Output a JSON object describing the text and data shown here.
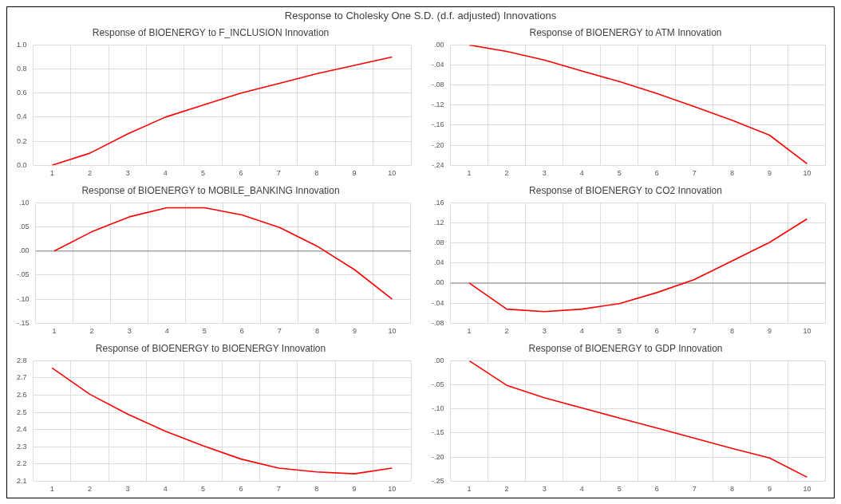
{
  "chart_data": [
    {
      "type": "line",
      "title": "Response of BIOENERGY to F_INCLUSION Innovation",
      "annotations": [
        "Response to Cholesky One S.D. (d.f. adjusted) Innovations"
      ],
      "categories": [
        "1",
        "2",
        "3",
        "4",
        "5",
        "6",
        "7",
        "8",
        "9",
        "10"
      ],
      "series": [
        {
          "color": "#ff0000",
          "values": [
            0,
            0.1,
            0.26,
            0.4,
            0.5,
            0.6,
            0.68,
            0.76,
            0.83,
            0.9
          ]
        }
      ],
      "ylim": [
        0,
        1.0
      ],
      "yticks": [
        {
          "value": 0,
          "label": "0.0"
        },
        0.2,
        0.4,
        0.6,
        0.8,
        {
          "value": 1,
          "label": "1.0"
        }
      ],
      "grid": true,
      "marker": "none"
    },
    {
      "type": "line",
      "title": "Response of BIOENERGY to ATM Innovation",
      "categories": [
        "1",
        "2",
        "3",
        "4",
        "5",
        "6",
        "7",
        "8",
        "9",
        "10"
      ],
      "series": [
        {
          "color": "#ff0000",
          "values": [
            0,
            -0.013,
            -0.03,
            -0.052,
            -0.073,
            -0.097,
            -0.123,
            -0.15,
            -0.18,
            -0.237
          ]
        }
      ],
      "ylim": [
        -0.24,
        0
      ],
      "yticks": [
        {
          "value": 0,
          "label": ".00"
        },
        {
          "value": -0.04,
          "label": "-.04"
        },
        {
          "value": -0.08,
          "label": "-.08"
        },
        {
          "value": -0.12,
          "label": "-.12"
        },
        {
          "value": -0.16,
          "label": "-.16"
        },
        {
          "value": -0.2,
          "label": "-.20"
        },
        {
          "value": -0.24,
          "label": "-.24"
        }
      ],
      "grid": true,
      "marker": "none"
    },
    {
      "type": "line",
      "title": "Response of BIOENERGY to MOBILE_BANKING Innovation",
      "categories": [
        "1",
        "2",
        "3",
        "4",
        "5",
        "6",
        "7",
        "8",
        "9",
        "10"
      ],
      "series": [
        {
          "color": "#ff0000",
          "values": [
            0,
            0.04,
            0.071,
            0.09,
            0.09,
            0.075,
            0.049,
            0.01,
            -0.039,
            -0.1
          ]
        }
      ],
      "ylim": [
        -0.15,
        0.1
      ],
      "yticks": [
        {
          "value": 0.1,
          "label": ".10"
        },
        {
          "value": 0.05,
          "label": ".05"
        },
        {
          "value": 0,
          "label": ".00"
        },
        {
          "value": -0.05,
          "label": "-.05"
        },
        {
          "value": -0.1,
          "label": "-.10"
        },
        {
          "value": -0.15,
          "label": "-.15"
        }
      ],
      "grid": true,
      "marker": "none",
      "ref_lines": [
        {
          "axis": "y",
          "value": 0,
          "color": "#a6a6a6"
        }
      ]
    },
    {
      "type": "line",
      "title": "Response of BIOENERGY to CO2 Innovation",
      "categories": [
        "1",
        "2",
        "3",
        "4",
        "5",
        "6",
        "7",
        "8",
        "9",
        "10"
      ],
      "series": [
        {
          "color": "#ff0000",
          "values": [
            0,
            -0.052,
            -0.057,
            -0.052,
            -0.041,
            -0.019,
            0.007,
            0.044,
            0.081,
            0.128
          ]
        }
      ],
      "ylim": [
        -0.08,
        0.16
      ],
      "yticks": [
        {
          "value": 0.16,
          "label": ".16"
        },
        {
          "value": 0.12,
          "label": ".12"
        },
        {
          "value": 0.08,
          "label": ".08"
        },
        {
          "value": 0.04,
          "label": ".04"
        },
        {
          "value": 0,
          "label": ".00"
        },
        {
          "value": -0.04,
          "label": "-.04"
        },
        {
          "value": -0.08,
          "label": "-.08"
        }
      ],
      "grid": true,
      "marker": "none",
      "ref_lines": [
        {
          "axis": "y",
          "value": 0,
          "color": "#a6a6a6"
        }
      ]
    },
    {
      "type": "line",
      "title": "Response of BIOENERGY to BIOENERGY Innovation",
      "categories": [
        "1",
        "2",
        "3",
        "4",
        "5",
        "6",
        "7",
        "8",
        "9",
        "10"
      ],
      "series": [
        {
          "color": "#ff0000",
          "values": [
            2.758,
            2.605,
            2.49,
            2.39,
            2.305,
            2.228,
            2.175,
            2.153,
            2.142,
            2.175
          ]
        }
      ],
      "ylim": [
        2.1,
        2.8
      ],
      "yticks": [
        2.1,
        2.2,
        2.3,
        2.4,
        2.5,
        2.6,
        2.7,
        2.8
      ],
      "grid": true,
      "marker": "none"
    },
    {
      "type": "line",
      "title": "Response of BIOENERGY to GDP Innovation",
      "categories": [
        "1",
        "2",
        "3",
        "4",
        "5",
        "6",
        "7",
        "8",
        "9",
        "10"
      ],
      "series": [
        {
          "color": "#ff0000",
          "values": [
            0,
            -0.051,
            -0.077,
            -0.098,
            -0.119,
            -0.14,
            -0.161,
            -0.182,
            -0.202,
            -0.242
          ]
        }
      ],
      "ylim": [
        -0.25,
        0
      ],
      "yticks": [
        {
          "value": 0,
          "label": ".00"
        },
        {
          "value": -0.05,
          "label": "-.05"
        },
        {
          "value": -0.1,
          "label": "-.10"
        },
        {
          "value": -0.15,
          "label": "-.15"
        },
        {
          "value": -0.2,
          "label": "-.20"
        },
        {
          "value": -0.25,
          "label": "-.25"
        }
      ],
      "grid": true,
      "marker": "none"
    }
  ]
}
